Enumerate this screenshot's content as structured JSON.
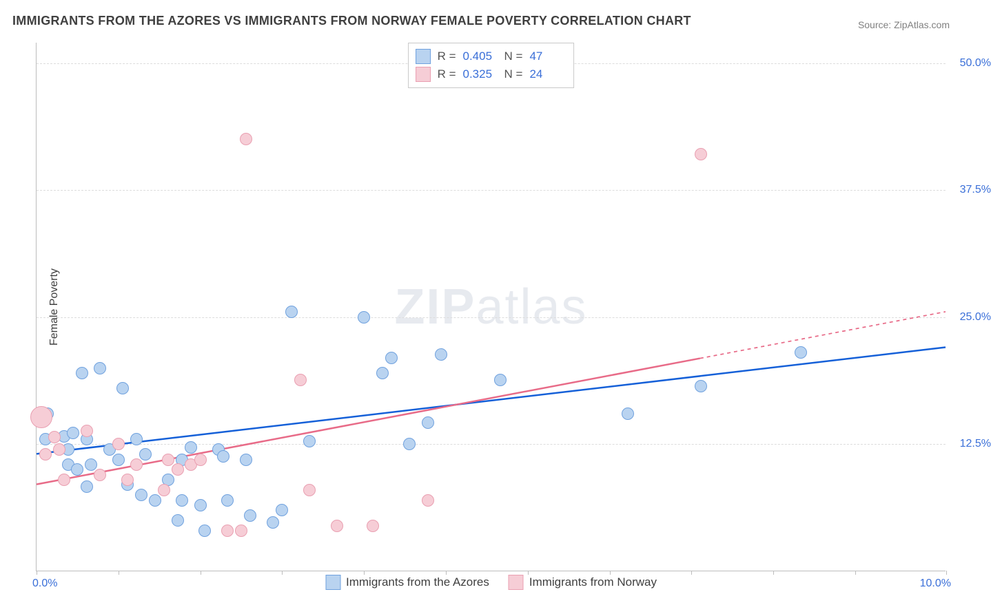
{
  "title": "IMMIGRANTS FROM THE AZORES VS IMMIGRANTS FROM NORWAY FEMALE POVERTY CORRELATION CHART",
  "source": "Source: ZipAtlas.com",
  "watermark": {
    "bold": "ZIP",
    "rest": "atlas"
  },
  "chart": {
    "type": "scatter",
    "background_color": "#ffffff",
    "grid_color": "#dcdcdc",
    "axis_color": "#bdbdbd",
    "tick_label_color": "#3a6fd8",
    "text_color": "#404040",
    "x_axis": {
      "min": 0.0,
      "max": 10.0,
      "start_label": "0.0%",
      "end_label": "10.0%",
      "tick_positions_pct": [
        0,
        9,
        18,
        27,
        36,
        45,
        54,
        63,
        72,
        81,
        90,
        100
      ]
    },
    "y_axis": {
      "title": "Female Poverty",
      "min": 0.0,
      "max": 52.0,
      "gridlines": [
        {
          "value": 12.5,
          "label": "12.5%"
        },
        {
          "value": 25.0,
          "label": "25.0%"
        },
        {
          "value": 37.5,
          "label": "37.5%"
        },
        {
          "value": 50.0,
          "label": "50.0%"
        }
      ]
    },
    "series": [
      {
        "id": "azores",
        "legend_label": "Immigrants from the Azores",
        "marker_fill": "#b9d3f0",
        "marker_stroke": "#6fa1de",
        "marker_radius": 9,
        "trend": {
          "color": "#1560d8",
          "width": 2.5,
          "y_at_xmin": 11.5,
          "y_at_xmax": 22.0,
          "solid_x_end": 10.0
        },
        "corr": {
          "r": "0.405",
          "n": "47"
        },
        "points": [
          {
            "x": 0.05,
            "y": 14.8
          },
          {
            "x": 0.1,
            "y": 13.0
          },
          {
            "x": 0.12,
            "y": 15.5
          },
          {
            "x": 0.3,
            "y": 13.3
          },
          {
            "x": 0.35,
            "y": 12.0
          },
          {
            "x": 0.35,
            "y": 10.5
          },
          {
            "x": 0.4,
            "y": 13.6
          },
          {
            "x": 0.45,
            "y": 10.0
          },
          {
            "x": 0.5,
            "y": 19.5
          },
          {
            "x": 0.55,
            "y": 13.0
          },
          {
            "x": 0.55,
            "y": 8.3
          },
          {
            "x": 0.6,
            "y": 10.5
          },
          {
            "x": 0.7,
            "y": 20.0
          },
          {
            "x": 0.8,
            "y": 12.0
          },
          {
            "x": 0.9,
            "y": 11.0
          },
          {
            "x": 0.95,
            "y": 18.0
          },
          {
            "x": 1.0,
            "y": 8.5
          },
          {
            "x": 1.1,
            "y": 13.0
          },
          {
            "x": 1.15,
            "y": 7.5
          },
          {
            "x": 1.2,
            "y": 11.5
          },
          {
            "x": 1.3,
            "y": 7.0
          },
          {
            "x": 1.45,
            "y": 9.0
          },
          {
            "x": 1.55,
            "y": 5.0
          },
          {
            "x": 1.6,
            "y": 11.0
          },
          {
            "x": 1.6,
            "y": 7.0
          },
          {
            "x": 1.7,
            "y": 12.2
          },
          {
            "x": 1.8,
            "y": 6.5
          },
          {
            "x": 1.85,
            "y": 4.0
          },
          {
            "x": 2.0,
            "y": 12.0
          },
          {
            "x": 2.05,
            "y": 11.3
          },
          {
            "x": 2.1,
            "y": 7.0
          },
          {
            "x": 2.3,
            "y": 11.0
          },
          {
            "x": 2.35,
            "y": 5.5
          },
          {
            "x": 2.6,
            "y": 4.8
          },
          {
            "x": 2.8,
            "y": 25.5
          },
          {
            "x": 2.7,
            "y": 6.0
          },
          {
            "x": 3.6,
            "y": 25.0
          },
          {
            "x": 3.8,
            "y": 19.5
          },
          {
            "x": 3.9,
            "y": 21.0
          },
          {
            "x": 4.3,
            "y": 14.6
          },
          {
            "x": 4.45,
            "y": 21.3
          },
          {
            "x": 5.1,
            "y": 18.8
          },
          {
            "x": 6.5,
            "y": 15.5
          },
          {
            "x": 7.3,
            "y": 18.2
          },
          {
            "x": 8.4,
            "y": 21.5
          },
          {
            "x": 4.1,
            "y": 12.5
          },
          {
            "x": 3.0,
            "y": 12.8
          }
        ]
      },
      {
        "id": "norway",
        "legend_label": "Immigrants from Norway",
        "marker_fill": "#f6cdd6",
        "marker_stroke": "#e99fb1",
        "marker_radius": 9,
        "trend": {
          "color": "#e86b88",
          "width": 2.5,
          "y_at_xmin": 8.5,
          "y_at_xmax": 25.5,
          "solid_x_end": 7.3
        },
        "corr": {
          "r": "0.325",
          "n": "24"
        },
        "points": [
          {
            "x": 0.05,
            "y": 15.2,
            "r": 16
          },
          {
            "x": 0.1,
            "y": 11.5
          },
          {
            "x": 0.2,
            "y": 13.2
          },
          {
            "x": 0.25,
            "y": 12.0
          },
          {
            "x": 0.3,
            "y": 9.0
          },
          {
            "x": 0.55,
            "y": 13.8
          },
          {
            "x": 0.7,
            "y": 9.5
          },
          {
            "x": 0.9,
            "y": 12.5
          },
          {
            "x": 1.0,
            "y": 9.0
          },
          {
            "x": 1.1,
            "y": 10.5
          },
          {
            "x": 1.4,
            "y": 8.0
          },
          {
            "x": 1.45,
            "y": 11.0
          },
          {
            "x": 1.55,
            "y": 10.0
          },
          {
            "x": 1.7,
            "y": 10.5
          },
          {
            "x": 1.8,
            "y": 11.0
          },
          {
            "x": 2.1,
            "y": 4.0
          },
          {
            "x": 2.25,
            "y": 4.0
          },
          {
            "x": 2.3,
            "y": 42.5
          },
          {
            "x": 2.9,
            "y": 18.8
          },
          {
            "x": 3.0,
            "y": 8.0
          },
          {
            "x": 3.3,
            "y": 4.5
          },
          {
            "x": 3.7,
            "y": 4.5
          },
          {
            "x": 4.3,
            "y": 7.0
          },
          {
            "x": 7.3,
            "y": 41.0
          }
        ]
      }
    ]
  }
}
